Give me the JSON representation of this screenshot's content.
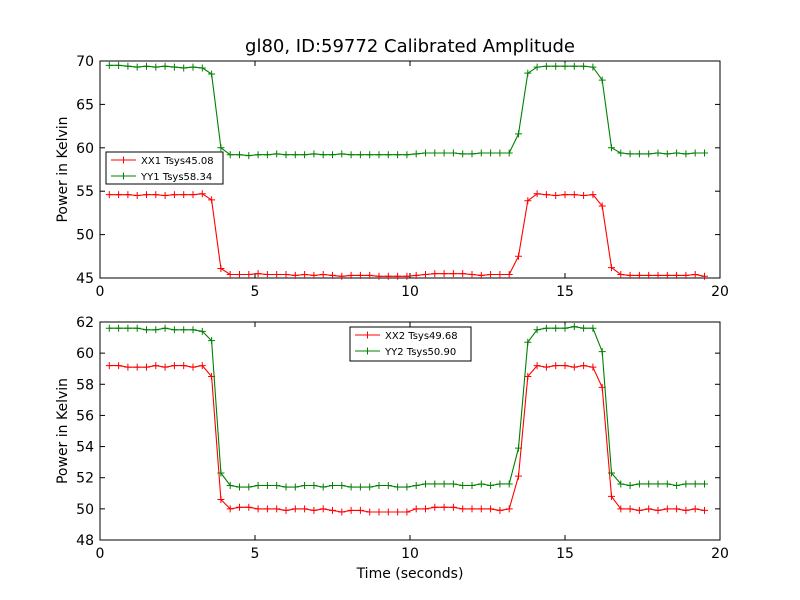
{
  "chart_data": [
    {
      "type": "line",
      "title": "gl80, ID:59772 Calibrated Amplitude",
      "xlabel": "",
      "ylabel": "Power in Kelvin",
      "xlim": [
        0,
        20
      ],
      "ylim": [
        45,
        70
      ],
      "xticks": [
        0,
        5,
        10,
        15,
        20
      ],
      "yticks": [
        45,
        50,
        55,
        60,
        65,
        70
      ],
      "legend_position": "center-left",
      "x": [
        0.3,
        0.6,
        0.9,
        1.2,
        1.5,
        1.8,
        2.1,
        2.4,
        2.7,
        3.0,
        3.3,
        3.6,
        3.9,
        4.2,
        4.5,
        4.8,
        5.1,
        5.4,
        5.7,
        6.0,
        6.3,
        6.6,
        6.9,
        7.2,
        7.5,
        7.8,
        8.1,
        8.4,
        8.7,
        9.0,
        9.3,
        9.6,
        9.9,
        10.2,
        10.5,
        10.8,
        11.1,
        11.4,
        11.7,
        12.0,
        12.3,
        12.6,
        12.9,
        13.2,
        13.5,
        13.8,
        14.1,
        14.4,
        14.7,
        15.0,
        15.3,
        15.6,
        15.9,
        16.2,
        16.5,
        16.8,
        17.1,
        17.4,
        17.7,
        18.0,
        18.3,
        18.6,
        18.9,
        19.2,
        19.5
      ],
      "series": [
        {
          "name": "XX1 Tsys45.08",
          "color": "#ff0000",
          "values": [
            54.6,
            54.6,
            54.6,
            54.5,
            54.6,
            54.6,
            54.5,
            54.6,
            54.6,
            54.6,
            54.7,
            54.0,
            46.1,
            45.4,
            45.4,
            45.4,
            45.5,
            45.4,
            45.4,
            45.4,
            45.3,
            45.4,
            45.3,
            45.4,
            45.3,
            45.2,
            45.3,
            45.3,
            45.3,
            45.2,
            45.2,
            45.2,
            45.2,
            45.3,
            45.4,
            45.5,
            45.5,
            45.5,
            45.5,
            45.4,
            45.3,
            45.4,
            45.4,
            45.4,
            47.5,
            53.9,
            54.7,
            54.6,
            54.5,
            54.6,
            54.6,
            54.5,
            54.6,
            53.3,
            46.2,
            45.4,
            45.3,
            45.3,
            45.3,
            45.3,
            45.3,
            45.3,
            45.3,
            45.4,
            45.2
          ]
        },
        {
          "name": "YY1 Tsys58.34",
          "color": "#008000",
          "values": [
            69.5,
            69.5,
            69.4,
            69.3,
            69.4,
            69.3,
            69.4,
            69.3,
            69.2,
            69.3,
            69.2,
            68.5,
            60.0,
            59.2,
            59.2,
            59.1,
            59.2,
            59.2,
            59.3,
            59.2,
            59.2,
            59.2,
            59.3,
            59.2,
            59.2,
            59.3,
            59.2,
            59.2,
            59.2,
            59.2,
            59.2,
            59.2,
            59.2,
            59.3,
            59.4,
            59.4,
            59.4,
            59.4,
            59.3,
            59.3,
            59.4,
            59.4,
            59.4,
            59.4,
            61.6,
            68.6,
            69.3,
            69.4,
            69.4,
            69.4,
            69.4,
            69.4,
            69.3,
            67.8,
            60.0,
            59.4,
            59.3,
            59.3,
            59.3,
            59.4,
            59.3,
            59.4,
            59.3,
            59.4,
            59.4
          ]
        }
      ]
    },
    {
      "type": "line",
      "title": "",
      "xlabel": "Time (seconds)",
      "ylabel": "Power in Kelvin",
      "xlim": [
        0,
        20
      ],
      "ylim": [
        48,
        62
      ],
      "xticks": [
        0,
        5,
        10,
        15,
        20
      ],
      "yticks": [
        48,
        50,
        52,
        54,
        56,
        58,
        60,
        62
      ],
      "legend_position": "upper-center",
      "x": [
        0.3,
        0.6,
        0.9,
        1.2,
        1.5,
        1.8,
        2.1,
        2.4,
        2.7,
        3.0,
        3.3,
        3.6,
        3.9,
        4.2,
        4.5,
        4.8,
        5.1,
        5.4,
        5.7,
        6.0,
        6.3,
        6.6,
        6.9,
        7.2,
        7.5,
        7.8,
        8.1,
        8.4,
        8.7,
        9.0,
        9.3,
        9.6,
        9.9,
        10.2,
        10.5,
        10.8,
        11.1,
        11.4,
        11.7,
        12.0,
        12.3,
        12.6,
        12.9,
        13.2,
        13.5,
        13.8,
        14.1,
        14.4,
        14.7,
        15.0,
        15.3,
        15.6,
        15.9,
        16.2,
        16.5,
        16.8,
        17.1,
        17.4,
        17.7,
        18.0,
        18.3,
        18.6,
        18.9,
        19.2,
        19.5
      ],
      "series": [
        {
          "name": "XX2 Tsys49.68",
          "color": "#ff0000",
          "values": [
            59.2,
            59.2,
            59.1,
            59.1,
            59.1,
            59.2,
            59.1,
            59.2,
            59.2,
            59.1,
            59.2,
            58.5,
            50.6,
            50.0,
            50.1,
            50.1,
            50.0,
            50.0,
            50.0,
            49.9,
            50.0,
            50.0,
            49.9,
            50.0,
            49.9,
            49.8,
            49.9,
            49.9,
            49.8,
            49.8,
            49.8,
            49.8,
            49.8,
            50.0,
            50.0,
            50.1,
            50.1,
            50.1,
            50.0,
            50.0,
            50.0,
            50.0,
            49.9,
            50.0,
            52.1,
            58.5,
            59.2,
            59.1,
            59.2,
            59.2,
            59.1,
            59.2,
            59.1,
            57.8,
            50.8,
            50.0,
            50.0,
            49.9,
            50.0,
            49.9,
            50.0,
            50.0,
            49.9,
            50.0,
            49.9
          ]
        },
        {
          "name": "YY2 Tsys50.90",
          "color": "#008000",
          "values": [
            61.6,
            61.6,
            61.6,
            61.6,
            61.5,
            61.5,
            61.6,
            61.5,
            61.5,
            61.5,
            61.4,
            60.8,
            52.3,
            51.5,
            51.4,
            51.4,
            51.5,
            51.5,
            51.5,
            51.4,
            51.4,
            51.5,
            51.5,
            51.4,
            51.5,
            51.5,
            51.4,
            51.4,
            51.4,
            51.5,
            51.5,
            51.4,
            51.4,
            51.5,
            51.6,
            51.6,
            51.6,
            51.6,
            51.5,
            51.5,
            51.6,
            51.5,
            51.6,
            51.6,
            53.9,
            60.7,
            61.5,
            61.6,
            61.6,
            61.6,
            61.7,
            61.6,
            61.6,
            60.1,
            52.3,
            51.6,
            51.5,
            51.6,
            51.6,
            51.6,
            51.6,
            51.5,
            51.6,
            51.6,
            51.6
          ]
        }
      ]
    }
  ]
}
